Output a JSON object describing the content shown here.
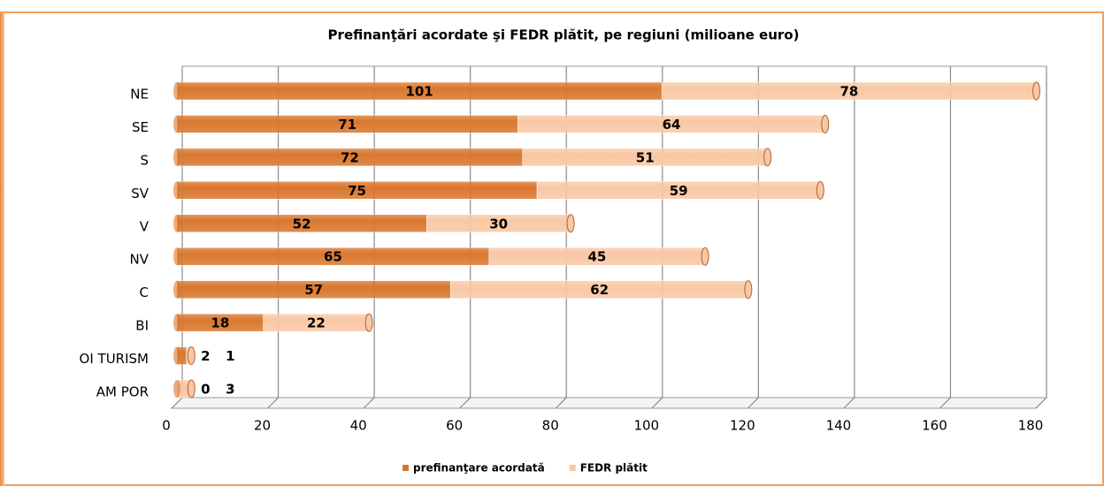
{
  "chart_data": {
    "type": "bar",
    "orientation": "horizontal",
    "stacked": true,
    "title": "Prefinanţări acordate şi FEDR plătit,  pe regiuni  (milioane euro)",
    "categories": [
      "NE",
      "SE",
      "S",
      "SV",
      "V",
      "NV",
      "C",
      "BI",
      "OI TURISM",
      "AM POR"
    ],
    "series": [
      {
        "name": "prefinanţare acordată",
        "color": "#d9772e",
        "values": [
          101,
          71,
          72,
          75,
          52,
          65,
          57,
          18,
          2,
          0
        ]
      },
      {
        "name": "FEDR plătit",
        "color": "#f9c7a4",
        "values": [
          78,
          64,
          51,
          59,
          30,
          45,
          62,
          22,
          1,
          3
        ]
      }
    ],
    "xlim": [
      0,
      180
    ],
    "xticks": [
      0,
      20,
      40,
      60,
      80,
      100,
      120,
      140,
      160,
      180
    ],
    "grid": true,
    "legend": "bottom"
  }
}
